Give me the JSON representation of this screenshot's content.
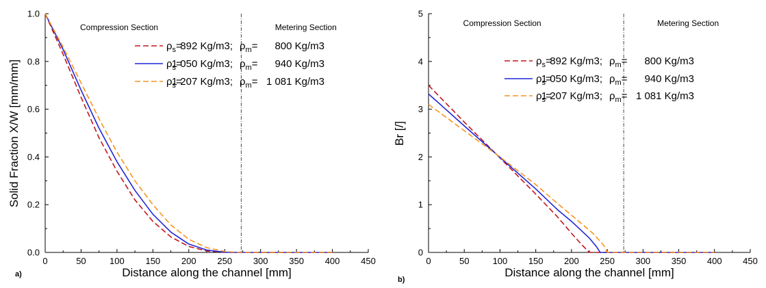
{
  "figure": {
    "legend_entries": [
      {
        "s_value": "892 Kg/m3;",
        "m_value": "800 Kg/m3",
        "color": "#c0151d",
        "dash": "dashed"
      },
      {
        "s_value": "1 050 Kg/m3;",
        "m_value": "940 Kg/m3",
        "color": "#1f25d6",
        "dash": "solid"
      },
      {
        "s_value": "1 207 Kg/m3;",
        "m_value": "1 081 Kg/m3",
        "color": "#f7941d",
        "dash": "dashed"
      }
    ],
    "legend_symbol": "ρ",
    "legend_sub_s": "s",
    "legend_sub_m": "m",
    "legend_eq": "="
  },
  "chart_data": [
    {
      "type": "line",
      "panel_label": "a)",
      "xlabel": "Distance along the channel [mm]",
      "ylabel": "Solid Fraction X/W [mm/mm]",
      "xlim": [
        0,
        450
      ],
      "ylim": [
        0,
        1.0
      ],
      "xticks": [
        "0",
        "50",
        "100",
        "150",
        "200",
        "250",
        "300",
        "350",
        "400",
        "450"
      ],
      "yticks": [
        "0.0",
        "0.2",
        "0.4",
        "0.6",
        "0.8",
        "1.0"
      ],
      "grid": false,
      "legend_position": "top-right",
      "section_boundary_x": 273,
      "sections": [
        {
          "label": "Compression Section",
          "x": 103
        },
        {
          "label": "Metering Section",
          "x": 363
        }
      ],
      "series": [
        {
          "x": [
            0,
            25,
            50,
            75,
            100,
            125,
            150,
            175,
            200,
            225,
            250,
            270,
            300,
            350,
            400
          ],
          "y": [
            1.0,
            0.83,
            0.65,
            0.48,
            0.34,
            0.22,
            0.13,
            0.065,
            0.025,
            0.006,
            0.0,
            0.0,
            0.0,
            0.0,
            0.0
          ]
        },
        {
          "x": [
            0,
            25,
            50,
            75,
            100,
            125,
            150,
            175,
            200,
            225,
            250,
            270,
            300,
            350,
            400
          ],
          "y": [
            1.0,
            0.85,
            0.68,
            0.52,
            0.38,
            0.26,
            0.16,
            0.085,
            0.035,
            0.01,
            0.001,
            0.0,
            0.0,
            0.0,
            0.0
          ]
        },
        {
          "x": [
            0,
            25,
            50,
            75,
            100,
            125,
            150,
            175,
            200,
            225,
            250,
            270,
            300,
            350,
            400
          ],
          "y": [
            1.0,
            0.86,
            0.71,
            0.56,
            0.42,
            0.3,
            0.2,
            0.115,
            0.055,
            0.02,
            0.004,
            0.0,
            0.0,
            0.0,
            0.0
          ]
        }
      ]
    },
    {
      "type": "line",
      "panel_label": "b)",
      "xlabel": "Distance along the channel [mm]",
      "ylabel": "Br [/]",
      "xlim": [
        0,
        450
      ],
      "ylim": [
        0,
        5
      ],
      "xticks": [
        "0",
        "50",
        "100",
        "150",
        "200",
        "250",
        "300",
        "350",
        "400",
        "450"
      ],
      "yticks": [
        "0",
        "1",
        "2",
        "3",
        "4",
        "5"
      ],
      "grid": false,
      "legend_position": "top-right",
      "section_boundary_x": 273,
      "sections": [
        {
          "label": "Compression Section",
          "x": 103
        },
        {
          "label": "Metering Section",
          "x": 363
        }
      ],
      "series": [
        {
          "x": [
            0,
            50,
            100,
            150,
            180,
            200,
            215,
            225,
            300,
            350,
            400
          ],
          "y": [
            3.5,
            2.73,
            1.98,
            1.22,
            0.75,
            0.4,
            0.15,
            0.0,
            0.0,
            0.0,
            0.0
          ]
        },
        {
          "x": [
            0,
            50,
            100,
            150,
            180,
            200,
            225,
            235,
            240,
            300,
            350,
            400
          ],
          "y": [
            3.32,
            2.65,
            1.99,
            1.33,
            0.9,
            0.65,
            0.3,
            0.12,
            0.0,
            0.0,
            0.0,
            0.0
          ]
        },
        {
          "x": [
            0,
            50,
            100,
            150,
            180,
            200,
            230,
            245,
            250,
            300,
            350,
            400
          ],
          "y": [
            3.1,
            2.55,
            2.0,
            1.42,
            1.03,
            0.78,
            0.4,
            0.15,
            0.0,
            0.0,
            0.0,
            0.0
          ]
        }
      ]
    }
  ]
}
